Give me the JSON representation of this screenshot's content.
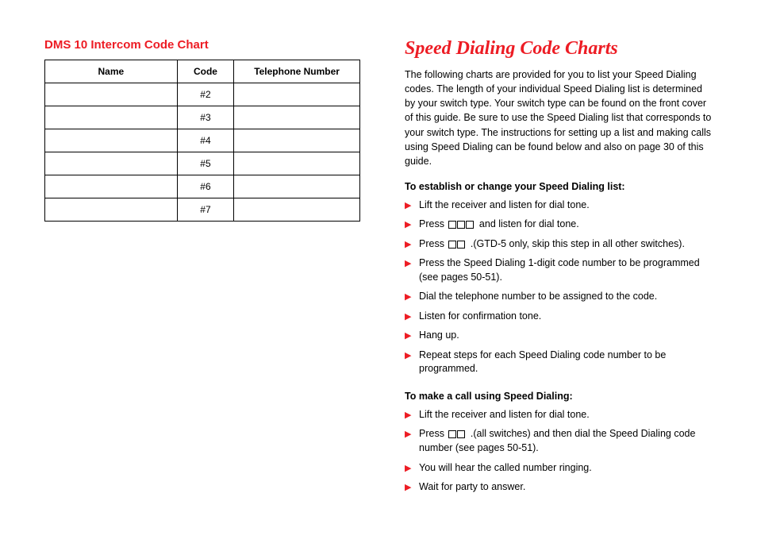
{
  "left": {
    "heading": "DMS 10 Intercom Code Chart",
    "table": {
      "columns": [
        "Name",
        "Code",
        "Telephone Number"
      ],
      "codes": [
        "#2",
        "#3",
        "#4",
        "#5",
        "#6",
        "#7"
      ]
    }
  },
  "right": {
    "heading": "Speed Dialing Code Charts",
    "intro": "The following charts are provided for you to list your Speed Dialing codes. The length of your individual Speed Dialing list is determined by your switch type. Your switch type can be found on the front cover of this guide. Be sure to use the Speed Dialing list that corresponds to your switch type. The instructions for setting up a list and making calls using Speed Dialing can be found below and also on page 30 of this guide.",
    "establish_heading": "To establish or change your Speed Dialing list:",
    "establish_steps": {
      "s0": "Lift the receiver and listen for dial tone.",
      "s1_pre": "Press ",
      "s1_post": " and listen for dial tone.",
      "s2_pre": "Press ",
      "s2_post": ".(GTD-5 only, skip this step in all other switches).",
      "s3": "Press the Speed Dialing 1-digit code number to be programmed (see pages 50-51).",
      "s4": "Dial the telephone number to be assigned to the code.",
      "s5": "Listen for confirmation tone.",
      "s6": "Hang up.",
      "s7": "Repeat steps for each Speed Dialing code number to be programmed."
    },
    "call_heading": "To make a call using Speed Dialing:",
    "call_steps": {
      "s0": "Lift the receiver and listen for dial tone.",
      "s1_pre": "Press ",
      "s1_post": ".(all switches) and then dial the Speed Dialing code number (see pages 50-51).",
      "s2": "You will hear the called number ringing.",
      "s3": "Wait for party to answer."
    }
  },
  "colors": {
    "accent": "#ed1c24",
    "text": "#000000",
    "border": "#000000",
    "background": "#ffffff"
  }
}
